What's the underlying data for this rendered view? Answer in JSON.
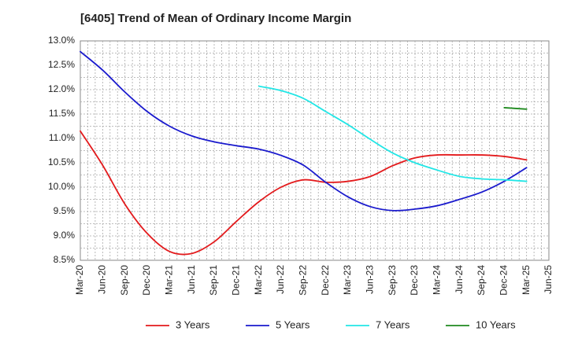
{
  "chart_data": {
    "type": "line",
    "title": "[6405]  Trend of Mean of Ordinary Income Margin",
    "xlabel": "",
    "ylabel": "",
    "x_ticks": [
      "Mar-20",
      "Jun-20",
      "Sep-20",
      "Dec-20",
      "Mar-21",
      "Jun-21",
      "Sep-21",
      "Dec-21",
      "Mar-22",
      "Jun-22",
      "Sep-22",
      "Dec-22",
      "Mar-23",
      "Jun-23",
      "Sep-23",
      "Dec-23",
      "Mar-24",
      "Jun-24",
      "Sep-24",
      "Dec-24",
      "Mar-25",
      "Jun-25"
    ],
    "y_ticks": [
      "8.5%",
      "9.0%",
      "9.5%",
      "10.0%",
      "10.5%",
      "11.0%",
      "11.5%",
      "12.0%",
      "12.5%",
      "13.0%"
    ],
    "y_tick_values": [
      8.5,
      9.0,
      9.5,
      10.0,
      10.5,
      11.0,
      11.5,
      12.0,
      12.5,
      13.0
    ],
    "ylim": [
      8.5,
      13.0
    ],
    "grid": true,
    "legend_position": "bottom",
    "series": [
      {
        "name": "3 Years",
        "color": "#e31a1c",
        "x": [
          "Mar-20",
          "Jun-20",
          "Sep-20",
          "Dec-20",
          "Mar-21",
          "Jun-21",
          "Sep-21",
          "Dec-21",
          "Mar-22",
          "Jun-22",
          "Sep-22",
          "Dec-22",
          "Mar-23",
          "Jun-23",
          "Sep-23",
          "Dec-23",
          "Mar-24",
          "Jun-24",
          "Sep-24",
          "Dec-24",
          "Mar-25"
        ],
        "values": [
          11.15,
          10.45,
          9.65,
          9.05,
          8.68,
          8.64,
          8.88,
          9.3,
          9.7,
          10.0,
          10.15,
          10.1,
          10.12,
          10.22,
          10.44,
          10.6,
          10.66,
          10.66,
          10.66,
          10.63,
          10.56
        ]
      },
      {
        "name": "5 Years",
        "color": "#1a1acd",
        "x": [
          "Mar-20",
          "Jun-20",
          "Sep-20",
          "Dec-20",
          "Mar-21",
          "Jun-21",
          "Sep-21",
          "Dec-21",
          "Mar-22",
          "Jun-22",
          "Sep-22",
          "Dec-22",
          "Mar-23",
          "Jun-23",
          "Sep-23",
          "Dec-23",
          "Mar-24",
          "Jun-24",
          "Sep-24",
          "Dec-24",
          "Mar-25"
        ],
        "values": [
          12.78,
          12.4,
          11.95,
          11.55,
          11.25,
          11.05,
          10.93,
          10.85,
          10.78,
          10.65,
          10.45,
          10.1,
          9.8,
          9.6,
          9.52,
          9.55,
          9.62,
          9.75,
          9.9,
          10.12,
          10.4
        ]
      },
      {
        "name": "7 Years",
        "color": "#22e6e6",
        "x": [
          "Mar-22",
          "Jun-22",
          "Sep-22",
          "Dec-22",
          "Mar-23",
          "Jun-23",
          "Sep-23",
          "Dec-23",
          "Mar-24",
          "Jun-24",
          "Sep-24",
          "Dec-24",
          "Mar-25"
        ],
        "values": [
          12.07,
          11.98,
          11.82,
          11.55,
          11.28,
          10.98,
          10.7,
          10.5,
          10.35,
          10.22,
          10.17,
          10.15,
          10.12
        ]
      },
      {
        "name": "10 Years",
        "color": "#1f8a1f",
        "x": [
          "Dec-24",
          "Mar-25"
        ],
        "values": [
          11.63,
          11.6
        ]
      }
    ]
  }
}
